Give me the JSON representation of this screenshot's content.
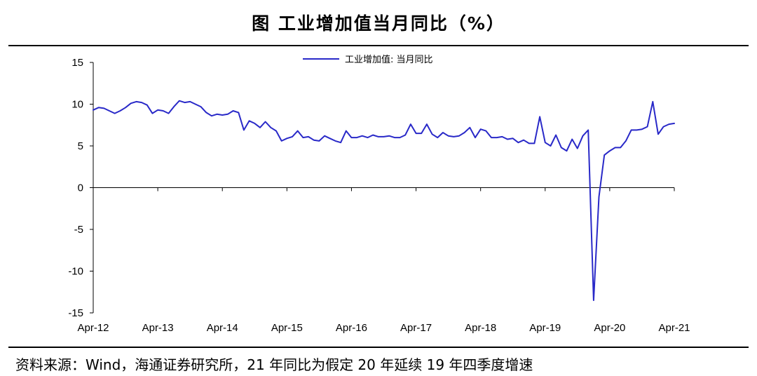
{
  "figure": {
    "title": "图  工业增加值当月同比（%）",
    "source": "资料来源：Wind，海通证券研究所，21 年同比为假定 20 年延续 19 年四季度增速"
  },
  "chart_data": {
    "type": "line",
    "title": "",
    "xlabel": "",
    "ylabel": "",
    "ylim": [
      -15,
      15
    ],
    "y_ticks": [
      15,
      10,
      5,
      0,
      -5,
      -10,
      -15
    ],
    "x_tick_labels": [
      "Apr-12",
      "Apr-13",
      "Apr-14",
      "Apr-15",
      "Apr-16",
      "Apr-17",
      "Apr-18",
      "Apr-19",
      "Apr-20",
      "Apr-21"
    ],
    "x_start": "Apr-12",
    "grid": false,
    "legend_position": "top-center",
    "series": [
      {
        "name": "工业增加值: 当月同比",
        "color": "#2929c8",
        "x": [
          "Apr-12",
          "May-12",
          "Jun-12",
          "Jul-12",
          "Aug-12",
          "Sep-12",
          "Oct-12",
          "Nov-12",
          "Dec-12",
          "Jan-13",
          "Feb-13",
          "Mar-13",
          "Apr-13",
          "May-13",
          "Jun-13",
          "Jul-13",
          "Aug-13",
          "Sep-13",
          "Oct-13",
          "Nov-13",
          "Dec-13",
          "Jan-14",
          "Feb-14",
          "Mar-14",
          "Apr-14",
          "May-14",
          "Jun-14",
          "Jul-14",
          "Aug-14",
          "Sep-14",
          "Oct-14",
          "Nov-14",
          "Dec-14",
          "Jan-15",
          "Feb-15",
          "Mar-15",
          "Apr-15",
          "May-15",
          "Jun-15",
          "Jul-15",
          "Aug-15",
          "Sep-15",
          "Oct-15",
          "Nov-15",
          "Dec-15",
          "Jan-16",
          "Feb-16",
          "Mar-16",
          "Apr-16",
          "May-16",
          "Jun-16",
          "Jul-16",
          "Aug-16",
          "Sep-16",
          "Oct-16",
          "Nov-16",
          "Dec-16",
          "Jan-17",
          "Feb-17",
          "Mar-17",
          "Apr-17",
          "May-17",
          "Jun-17",
          "Jul-17",
          "Aug-17",
          "Sep-17",
          "Oct-17",
          "Nov-17",
          "Dec-17",
          "Jan-18",
          "Feb-18",
          "Mar-18",
          "Apr-18",
          "May-18",
          "Jun-18",
          "Jul-18",
          "Aug-18",
          "Sep-18",
          "Oct-18",
          "Nov-18",
          "Dec-18",
          "Jan-19",
          "Feb-19",
          "Mar-19",
          "Apr-19",
          "May-19",
          "Jun-19",
          "Jul-19",
          "Aug-19",
          "Sep-19",
          "Oct-19",
          "Nov-19",
          "Dec-19",
          "Jan-20",
          "Feb-20",
          "Mar-20",
          "Apr-20",
          "May-20",
          "Jun-20",
          "Jul-20",
          "Aug-20",
          "Sep-20",
          "Oct-20",
          "Nov-20",
          "Dec-20",
          "Jan-21",
          "Feb-21",
          "Mar-21",
          "Apr-21"
        ],
        "values": [
          9.3,
          9.6,
          9.5,
          9.2,
          8.9,
          9.2,
          9.6,
          10.1,
          10.3,
          10.2,
          9.9,
          8.9,
          9.3,
          9.2,
          8.9,
          9.7,
          10.4,
          10.2,
          10.3,
          10.0,
          9.7,
          9.0,
          8.6,
          8.8,
          8.7,
          8.8,
          9.2,
          9.0,
          6.9,
          8.0,
          7.7,
          7.2,
          7.9,
          7.2,
          6.8,
          5.6,
          5.9,
          6.1,
          6.8,
          6.0,
          6.1,
          5.7,
          5.6,
          6.2,
          5.9,
          5.6,
          5.4,
          6.8,
          6.0,
          6.0,
          6.2,
          6.0,
          6.3,
          6.1,
          6.1,
          6.2,
          6.0,
          6.0,
          6.3,
          7.6,
          6.5,
          6.5,
          7.6,
          6.4,
          6.0,
          6.6,
          6.2,
          6.1,
          6.2,
          6.6,
          7.2,
          6.0,
          7.0,
          6.8,
          6.0,
          6.0,
          6.1,
          5.8,
          5.9,
          5.4,
          5.7,
          5.3,
          5.3,
          8.5,
          5.4,
          5.0,
          6.3,
          4.8,
          4.4,
          5.8,
          4.7,
          6.2,
          6.9,
          -13.5,
          -1.1,
          3.9,
          4.4,
          4.8,
          4.8,
          5.6,
          6.9,
          6.9,
          7.0,
          7.3,
          10.3,
          6.4,
          7.3,
          7.6,
          7.7
        ]
      }
    ]
  }
}
